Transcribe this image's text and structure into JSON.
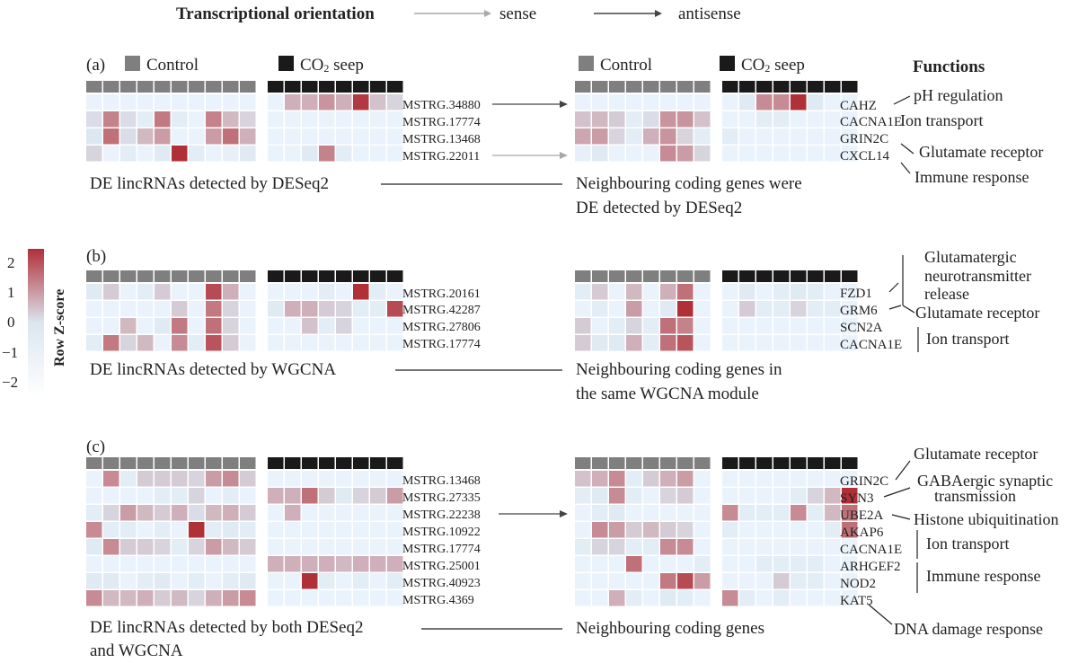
{
  "header": {
    "title": "Transcriptional orientation",
    "sense_label": "sense",
    "antisense_label": "antisense",
    "sense_color": "#a8a8a8",
    "antisense_color": "#444444"
  },
  "legend": {
    "control": "Control",
    "seep_prefix": "CO",
    "seep_sub": "2",
    "seep_suffix": " seep",
    "control_color": "#7f7f7f",
    "seep_color": "#1a1a1a",
    "functions_title": "Functions"
  },
  "colorscale": {
    "label": "Row Z-score",
    "ticks": [
      "2",
      "1",
      "0",
      "−1",
      "−2"
    ],
    "low_color": "#eaf3fb",
    "mid_color": "#dce6f0",
    "high_color": "#b03038"
  },
  "panels": [
    {
      "label": "(a)",
      "lnc_rows": [
        "MSTRG.34880",
        "MSTRG.17774",
        "MSTRG.13468",
        "MSTRG.22011"
      ],
      "gene_rows": [
        "CAHZ",
        "CACNA1E",
        "GRIN2C",
        "CXCL14"
      ],
      "lnc_values": [
        [
          -1,
          -1,
          -1,
          -1,
          -1,
          -1,
          -1,
          -1,
          -1,
          -1,
          -1,
          0.6,
          0.6,
          0.9,
          0.6,
          1.9,
          0.4,
          0.2
        ],
        [
          0.1,
          1.1,
          0.1,
          -0.5,
          1.2,
          -0.5,
          -1,
          1.1,
          0.5,
          0.2,
          -1,
          -1,
          -1,
          -1,
          -1,
          -1,
          -1,
          -1
        ],
        [
          -0.1,
          1.3,
          0.1,
          0.5,
          0.8,
          -1,
          -1,
          0.8,
          1.3,
          0.6,
          -1,
          -1,
          -1,
          -1,
          -1,
          -1,
          -1,
          -1
        ],
        [
          0.2,
          -1,
          -0.5,
          -1,
          -0.3,
          2,
          -0.5,
          -1,
          -0.8,
          -0.3,
          -1,
          -1,
          -0.3,
          1.1,
          -0.5,
          -1,
          -1,
          -1
        ]
      ],
      "gene_values": [
        [
          -1,
          -1,
          -1,
          -1,
          -1,
          -1,
          -1,
          -1,
          -1,
          -0.3,
          1,
          1,
          2,
          -0.3,
          -1,
          -1
        ],
        [
          0.4,
          0.5,
          0.3,
          -0.5,
          0.1,
          0.9,
          0.9,
          0.4,
          -1,
          -1,
          -0.5,
          -0.5,
          -1,
          -1,
          -1,
          -1
        ],
        [
          0.7,
          0.8,
          0.2,
          -0.5,
          0.6,
          0.9,
          0.2,
          -0.5,
          -0.5,
          -1,
          -1,
          -1,
          -1,
          -1,
          -1,
          -1
        ],
        [
          -0.8,
          -0.3,
          -1,
          -1,
          -1,
          1,
          0.8,
          0.2,
          -1,
          -1,
          -1,
          -1,
          -1,
          -1,
          -1,
          -1
        ]
      ],
      "left_caption": [
        "DE lincRNAs detected by DESeq2"
      ],
      "right_caption": [
        "Neighbouring coding genes were",
        "DE detected by DESeq2"
      ],
      "functions": [
        "pH regulation",
        "Ion transport",
        "Glutamate receptor",
        "Immune response"
      ]
    },
    {
      "label": "(b)",
      "lnc_rows": [
        "MSTRG.20161",
        "MSTRG.42287",
        "MSTRG.27806",
        "MSTRG.17774"
      ],
      "gene_rows": [
        "FZD1",
        "GRM6",
        "SCN2A",
        "CACNA1E"
      ],
      "lnc_values": [
        [
          -0.3,
          0.3,
          -1,
          -0.5,
          0.3,
          -1,
          -1,
          1.7,
          0.6,
          -1,
          -1,
          -1,
          -1,
          -0.5,
          -1,
          2,
          -0.5,
          -1
        ],
        [
          -1,
          -1,
          -1,
          -1,
          -1,
          0.3,
          -1,
          1.2,
          0.2,
          -1,
          -0.3,
          0.6,
          0.6,
          0.3,
          0.2,
          -0.5,
          -0.5,
          1.7
        ],
        [
          -1,
          -1,
          0.5,
          -1,
          -0.3,
          1.2,
          -1,
          1.3,
          0.2,
          -1,
          -1,
          -1,
          0.4,
          -0.5,
          0.2,
          -1,
          -1,
          -1
        ],
        [
          -0.5,
          1.2,
          0.2,
          0.5,
          -1,
          1,
          -0.5,
          1.6,
          0.3,
          -1,
          -1,
          -1,
          -1,
          -1,
          -1,
          -1,
          -1,
          -1
        ]
      ],
      "gene_values": [
        [
          -0.5,
          0.3,
          -1,
          0.5,
          -1,
          0.6,
          1.3,
          -1,
          -1,
          -0.3,
          -1,
          -0.5,
          -0.3,
          -0.5,
          -1,
          -1
        ],
        [
          -1,
          -0.5,
          -1,
          0.8,
          -1,
          -0.3,
          2,
          -1,
          -1,
          0.3,
          -0.5,
          -0.5,
          0.2,
          -0.5,
          -0.5,
          -1
        ],
        [
          0.3,
          -1,
          -0.5,
          0.2,
          -0.5,
          1.3,
          1.1,
          -1,
          -1,
          -1,
          -1,
          -1,
          -1,
          -1,
          -1,
          -1
        ],
        [
          0.3,
          -0.3,
          -0.3,
          0.6,
          -0.5,
          1.3,
          1.6,
          -1,
          -1,
          -1,
          -1,
          -1,
          -1,
          -1,
          -1,
          -1
        ]
      ],
      "left_caption": [
        "DE lincRNAs detected by WGCNA"
      ],
      "right_caption": [
        "Neighbouring coding genes in",
        "the same WGCNA module"
      ],
      "functions": [
        "Glutamatergic",
        "neurotransmitter",
        "release",
        "Glutamate receptor",
        "Ion transport"
      ]
    },
    {
      "label": "(c)",
      "lnc_rows": [
        "MSTRG.13468",
        "MSTRG.27335",
        "MSTRG.22238",
        "MSTRG.10922",
        "MSTRG.17774",
        "MSTRG.25001",
        "MSTRG.40923",
        "MSTRG.4369"
      ],
      "gene_rows": [
        "GRIN2C",
        "SYN3",
        "UBE2A",
        "AKAP6",
        "CACNA1E",
        "ARHGEF2",
        "NOD2",
        "KAT5"
      ],
      "lnc_values": [
        [
          -1,
          1,
          -0.5,
          0.3,
          0.3,
          0.3,
          0.2,
          0.8,
          1,
          0.3,
          -1,
          -1,
          -1,
          -1,
          -1,
          -1,
          -1,
          -1
        ],
        [
          -1,
          -1,
          -1,
          -1,
          -0.5,
          -0.5,
          0.2,
          -1,
          -0.5,
          -1,
          0.6,
          0.6,
          1.3,
          0.3,
          -0.3,
          0.2,
          0.3,
          0.8
        ],
        [
          -0.5,
          0.2,
          0.8,
          0.5,
          0.3,
          0.6,
          0.1,
          0.5,
          0.6,
          0.3,
          -1,
          0.6,
          -1,
          -1,
          -1,
          -1,
          -1,
          -1
        ],
        [
          1,
          -0.5,
          -0.5,
          -1,
          -0.5,
          -1,
          2,
          -0.5,
          -0.3,
          -0.5,
          -1,
          -1,
          -1,
          -1,
          -1,
          -1,
          -1,
          -1
        ],
        [
          -0.3,
          1,
          0.3,
          0.3,
          0.2,
          -0.5,
          0.2,
          0.8,
          0.5,
          0.3,
          -1,
          -1,
          -1,
          -1,
          -1,
          -1,
          -1,
          -1
        ],
        [
          -1,
          -1,
          -1,
          -1,
          -1,
          -1,
          -1,
          -1,
          -1,
          -1,
          0.6,
          0.6,
          0.6,
          0.6,
          0.5,
          0.6,
          0.6,
          0.6
        ],
        [
          -0.3,
          -0.3,
          -1,
          -0.5,
          -0.3,
          -1,
          -0.5,
          -1,
          -0.5,
          -0.3,
          -1,
          -1,
          2,
          -0.5,
          -1,
          -0.5,
          -1,
          -0.5
        ],
        [
          1,
          0.5,
          0.5,
          0.6,
          0.3,
          0.5,
          0.2,
          0.6,
          0.8,
          1,
          -1,
          -1,
          -1,
          -1,
          -1,
          -1,
          -1,
          -1
        ]
      ],
      "gene_values": [
        [
          0.4,
          0.6,
          1,
          -0.5,
          0.3,
          0.6,
          0.8,
          -1,
          -1,
          -1,
          -1,
          -1,
          -1,
          -1,
          -1,
          -1
        ],
        [
          -0.5,
          -0.3,
          1,
          -0.5,
          -1,
          0.2,
          0.3,
          -1,
          -1,
          -1,
          -1,
          -1,
          -0.5,
          0.2,
          0.5,
          2
        ],
        [
          -1,
          -0.5,
          -0.3,
          -1,
          -1,
          -1,
          -1,
          -1,
          1,
          -0.5,
          -0.5,
          -0.5,
          1,
          -0.5,
          0.5,
          1.3
        ],
        [
          -1,
          1,
          0.8,
          0.3,
          0.5,
          0.3,
          0.2,
          -1,
          -0.5,
          -1,
          -1,
          -1,
          -1,
          -1,
          -0.5,
          1.3
        ],
        [
          -0.5,
          0.2,
          0.2,
          -0.5,
          -0.5,
          1,
          1,
          -1,
          -1,
          -1,
          -1,
          -1,
          -1,
          -1,
          -1,
          -1
        ],
        [
          -1,
          -1,
          -1,
          1.3,
          -1,
          -1,
          -1,
          -0.5,
          -1,
          -1,
          -0.5,
          -0.5,
          -0.5,
          -0.5,
          -1,
          -1
        ],
        [
          -1,
          -1,
          -1,
          -1,
          -1,
          1.2,
          1.7,
          0.8,
          -1,
          -1,
          -1,
          0.3,
          -0.5,
          -0.5,
          -1,
          -1
        ],
        [
          -1,
          -1,
          0.6,
          -0.5,
          -1,
          -0.3,
          -0.5,
          -1,
          1,
          -0.5,
          -1,
          -0.5,
          -1,
          -1,
          -1,
          -1
        ]
      ],
      "left_caption": [
        "DE lincRNAs detected by both DESeq2",
        "and WGCNA"
      ],
      "right_caption": [
        "Neighbouring coding genes"
      ],
      "functions": [
        "Glutamate receptor",
        "GABAergic synaptic",
        "transmission",
        "Histone ubiquitination",
        "Ion transport",
        "Immune response",
        "DNA damage response"
      ]
    }
  ]
}
